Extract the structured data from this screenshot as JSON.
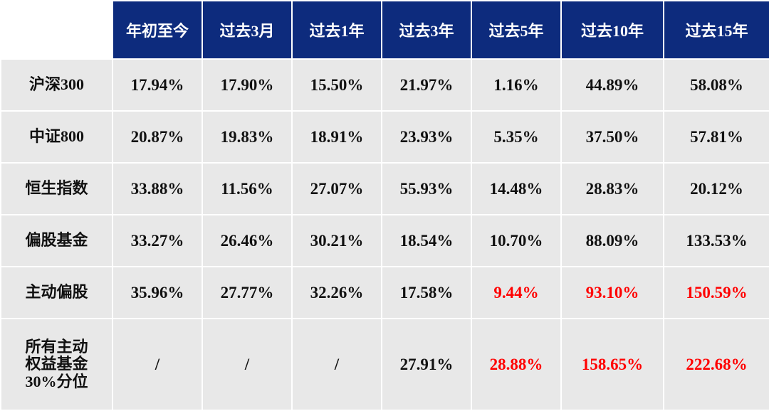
{
  "table": {
    "columns": [
      "年初至今",
      "过去3月",
      "过去1年",
      "过去3年",
      "过去5年",
      "过去10年",
      "过去15年"
    ],
    "rows": [
      {
        "label": "沪深300",
        "cells": [
          "17.94%",
          "17.90%",
          "15.50%",
          "21.97%",
          "1.16%",
          "44.89%",
          "58.08%"
        ]
      },
      {
        "label": "中证800",
        "cells": [
          "20.87%",
          "19.83%",
          "18.91%",
          "23.93%",
          "5.35%",
          "37.50%",
          "57.81%"
        ]
      },
      {
        "label": "恒生指数",
        "cells": [
          "33.88%",
          "11.56%",
          "27.07%",
          "55.93%",
          "14.48%",
          "28.83%",
          "20.12%"
        ]
      },
      {
        "label": "偏股基金",
        "cells": [
          "33.27%",
          "26.46%",
          "30.21%",
          "18.54%",
          "10.70%",
          "88.09%",
          "133.53%"
        ]
      },
      {
        "label": "主动偏股",
        "cells": [
          "35.96%",
          "27.77%",
          "32.26%",
          "17.58%",
          "9.44%",
          "93.10%",
          "150.59%"
        ]
      },
      {
        "label": "所有主动\n权益基金\n30%分位",
        "cells": [
          "/",
          "/",
          "/",
          "27.91%",
          "28.88%",
          "158.65%",
          "222.68%"
        ]
      }
    ]
  }
}
